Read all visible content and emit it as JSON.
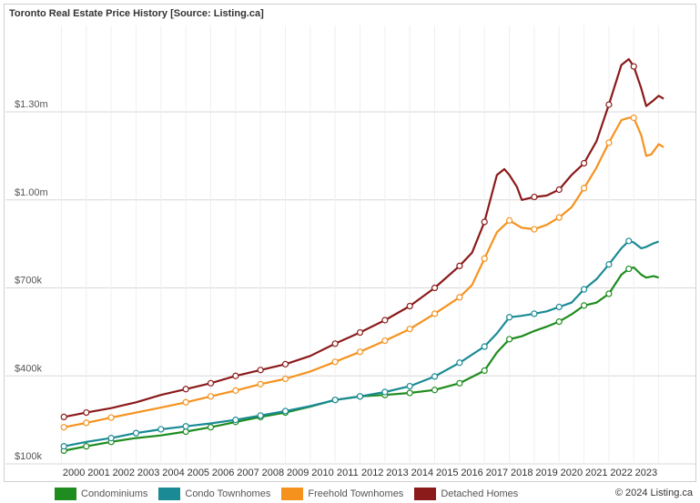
{
  "title": "Toronto Real Estate Price History [Source: Listing.ca]",
  "copyright": "© 2024 Listing.ca",
  "chart_data": {
    "type": "line",
    "title": "Toronto Real Estate Price History [Source: Listing.ca]",
    "xlabel": "",
    "ylabel": "",
    "x_ticks": [
      "2000",
      "2001",
      "2002",
      "2003",
      "2004",
      "2005",
      "2006",
      "2007",
      "2008",
      "2009",
      "2010",
      "2011",
      "2012",
      "2013",
      "2014",
      "2015",
      "2016",
      "2017",
      "2018",
      "2019",
      "2020",
      "2021",
      "2022",
      "2023"
    ],
    "y_ticks": [
      {
        "value": 100000,
        "label": "$100k"
      },
      {
        "value": 400000,
        "label": "$400k"
      },
      {
        "value": 700000,
        "label": "$700k"
      },
      {
        "value": 1000000,
        "label": "$1.00m"
      },
      {
        "value": 1300000,
        "label": "$1.30m"
      }
    ],
    "xlim": [
      1999.3,
      2024.1
    ],
    "ylim": [
      100000,
      1570000
    ],
    "grid": true,
    "legend_placement": "bottom",
    "series": [
      {
        "name": "Condominiums",
        "color": "#1e8c1e",
        "points": [
          [
            1999.6,
            145000
          ],
          [
            2000.5,
            160000
          ],
          [
            2001.5,
            175000
          ],
          [
            2002.5,
            188000
          ],
          [
            2003.5,
            197000
          ],
          [
            2004.5,
            210000
          ],
          [
            2005.5,
            225000
          ],
          [
            2006.5,
            243000
          ],
          [
            2007.5,
            260000
          ],
          [
            2008.5,
            275000
          ],
          [
            2009.5,
            295000
          ],
          [
            2010.5,
            318000
          ],
          [
            2011.5,
            330000
          ],
          [
            2012.5,
            335000
          ],
          [
            2013.5,
            342000
          ],
          [
            2014.5,
            352000
          ],
          [
            2015.5,
            375000
          ],
          [
            2016.5,
            418000
          ],
          [
            2017.0,
            480000
          ],
          [
            2017.5,
            525000
          ],
          [
            2018.0,
            535000
          ],
          [
            2018.5,
            553000
          ],
          [
            2019.0,
            568000
          ],
          [
            2019.5,
            585000
          ],
          [
            2020.0,
            610000
          ],
          [
            2020.5,
            640000
          ],
          [
            2021.0,
            650000
          ],
          [
            2021.5,
            680000
          ],
          [
            2022.0,
            745000
          ],
          [
            2022.3,
            765000
          ],
          [
            2022.5,
            770000
          ],
          [
            2022.8,
            745000
          ],
          [
            2023.0,
            735000
          ],
          [
            2023.3,
            740000
          ],
          [
            2023.5,
            735000
          ]
        ],
        "markers": [
          [
            1999.6,
            145000
          ],
          [
            2000.5,
            160000
          ],
          [
            2001.5,
            175000
          ],
          [
            2004.5,
            210000
          ],
          [
            2005.5,
            225000
          ],
          [
            2006.5,
            243000
          ],
          [
            2007.5,
            260000
          ],
          [
            2008.5,
            275000
          ],
          [
            2010.5,
            318000
          ],
          [
            2011.5,
            330000
          ],
          [
            2012.5,
            335000
          ],
          [
            2013.5,
            342000
          ],
          [
            2014.5,
            352000
          ],
          [
            2015.5,
            375000
          ],
          [
            2016.5,
            418000
          ],
          [
            2017.5,
            525000
          ],
          [
            2019.5,
            585000
          ],
          [
            2020.5,
            640000
          ],
          [
            2021.5,
            680000
          ],
          [
            2022.3,
            765000
          ]
        ]
      },
      {
        "name": "Condo Townhomes",
        "color": "#1a8a94",
        "points": [
          [
            1999.6,
            160000
          ],
          [
            2000.5,
            175000
          ],
          [
            2001.5,
            188000
          ],
          [
            2002.5,
            205000
          ],
          [
            2003.5,
            218000
          ],
          [
            2004.5,
            228000
          ],
          [
            2005.5,
            238000
          ],
          [
            2006.5,
            250000
          ],
          [
            2007.5,
            265000
          ],
          [
            2008.5,
            280000
          ],
          [
            2009.5,
            297000
          ],
          [
            2010.5,
            318000
          ],
          [
            2011.5,
            330000
          ],
          [
            2012.5,
            345000
          ],
          [
            2013.5,
            365000
          ],
          [
            2014.5,
            398000
          ],
          [
            2015.5,
            445000
          ],
          [
            2016.5,
            500000
          ],
          [
            2017.0,
            545000
          ],
          [
            2017.5,
            600000
          ],
          [
            2018.0,
            605000
          ],
          [
            2018.5,
            612000
          ],
          [
            2019.0,
            620000
          ],
          [
            2019.5,
            635000
          ],
          [
            2020.0,
            650000
          ],
          [
            2020.5,
            695000
          ],
          [
            2021.0,
            730000
          ],
          [
            2021.5,
            780000
          ],
          [
            2022.0,
            835000
          ],
          [
            2022.3,
            860000
          ],
          [
            2022.5,
            855000
          ],
          [
            2022.8,
            835000
          ],
          [
            2023.0,
            840000
          ],
          [
            2023.3,
            852000
          ],
          [
            2023.5,
            858000
          ]
        ],
        "markers": [
          [
            1999.6,
            160000
          ],
          [
            2001.5,
            188000
          ],
          [
            2002.5,
            205000
          ],
          [
            2003.5,
            218000
          ],
          [
            2004.5,
            228000
          ],
          [
            2006.5,
            250000
          ],
          [
            2007.5,
            265000
          ],
          [
            2008.5,
            280000
          ],
          [
            2010.5,
            318000
          ],
          [
            2011.5,
            330000
          ],
          [
            2012.5,
            345000
          ],
          [
            2013.5,
            365000
          ],
          [
            2014.5,
            398000
          ],
          [
            2015.5,
            445000
          ],
          [
            2016.5,
            500000
          ],
          [
            2017.5,
            600000
          ],
          [
            2018.5,
            612000
          ],
          [
            2019.5,
            635000
          ],
          [
            2020.5,
            695000
          ],
          [
            2021.5,
            780000
          ],
          [
            2022.3,
            860000
          ]
        ]
      },
      {
        "name": "Freehold Townhomes",
        "color": "#f5921e",
        "points": [
          [
            1999.6,
            225000
          ],
          [
            2000.5,
            240000
          ],
          [
            2001.5,
            258000
          ],
          [
            2002.5,
            275000
          ],
          [
            2003.5,
            292000
          ],
          [
            2004.5,
            310000
          ],
          [
            2005.5,
            330000
          ],
          [
            2006.5,
            350000
          ],
          [
            2007.5,
            372000
          ],
          [
            2008.5,
            390000
          ],
          [
            2009.5,
            415000
          ],
          [
            2010.5,
            448000
          ],
          [
            2011.5,
            482000
          ],
          [
            2012.5,
            520000
          ],
          [
            2013.5,
            560000
          ],
          [
            2014.5,
            612000
          ],
          [
            2015.5,
            668000
          ],
          [
            2016.0,
            710000
          ],
          [
            2016.5,
            800000
          ],
          [
            2017.0,
            890000
          ],
          [
            2017.5,
            930000
          ],
          [
            2018.0,
            905000
          ],
          [
            2018.5,
            900000
          ],
          [
            2019.0,
            915000
          ],
          [
            2019.5,
            940000
          ],
          [
            2020.0,
            975000
          ],
          [
            2020.5,
            1040000
          ],
          [
            2021.0,
            1110000
          ],
          [
            2021.5,
            1195000
          ],
          [
            2022.0,
            1272000
          ],
          [
            2022.3,
            1280000
          ],
          [
            2022.5,
            1280000
          ],
          [
            2022.8,
            1220000
          ],
          [
            2023.0,
            1150000
          ],
          [
            2023.2,
            1155000
          ],
          [
            2023.5,
            1190000
          ],
          [
            2023.7,
            1180000
          ]
        ],
        "markers": [
          [
            1999.6,
            225000
          ],
          [
            2000.5,
            240000
          ],
          [
            2001.5,
            258000
          ],
          [
            2004.5,
            310000
          ],
          [
            2005.5,
            330000
          ],
          [
            2006.5,
            350000
          ],
          [
            2007.5,
            372000
          ],
          [
            2008.5,
            390000
          ],
          [
            2010.5,
            448000
          ],
          [
            2011.5,
            482000
          ],
          [
            2012.5,
            520000
          ],
          [
            2013.5,
            560000
          ],
          [
            2014.5,
            612000
          ],
          [
            2015.5,
            668000
          ],
          [
            2016.5,
            800000
          ],
          [
            2017.5,
            930000
          ],
          [
            2018.5,
            900000
          ],
          [
            2019.5,
            940000
          ],
          [
            2020.5,
            1040000
          ],
          [
            2021.5,
            1195000
          ],
          [
            2022.5,
            1280000
          ]
        ]
      },
      {
        "name": "Detached Homes",
        "color": "#8b1a1a",
        "points": [
          [
            1999.6,
            260000
          ],
          [
            2000.5,
            275000
          ],
          [
            2001.5,
            290000
          ],
          [
            2002.5,
            310000
          ],
          [
            2003.5,
            335000
          ],
          [
            2004.5,
            355000
          ],
          [
            2005.5,
            375000
          ],
          [
            2006.5,
            400000
          ],
          [
            2007.5,
            420000
          ],
          [
            2008.5,
            440000
          ],
          [
            2009.5,
            468000
          ],
          [
            2010.5,
            510000
          ],
          [
            2011.5,
            548000
          ],
          [
            2012.5,
            590000
          ],
          [
            2013.5,
            638000
          ],
          [
            2014.5,
            700000
          ],
          [
            2015.5,
            775000
          ],
          [
            2016.0,
            820000
          ],
          [
            2016.5,
            925000
          ],
          [
            2017.0,
            1085000
          ],
          [
            2017.3,
            1105000
          ],
          [
            2017.5,
            1085000
          ],
          [
            2017.8,
            1045000
          ],
          [
            2018.0,
            1000000
          ],
          [
            2018.5,
            1010000
          ],
          [
            2019.0,
            1015000
          ],
          [
            2019.5,
            1035000
          ],
          [
            2020.0,
            1085000
          ],
          [
            2020.5,
            1125000
          ],
          [
            2021.0,
            1200000
          ],
          [
            2021.5,
            1325000
          ],
          [
            2022.0,
            1460000
          ],
          [
            2022.3,
            1480000
          ],
          [
            2022.5,
            1455000
          ],
          [
            2022.8,
            1380000
          ],
          [
            2023.0,
            1320000
          ],
          [
            2023.3,
            1340000
          ],
          [
            2023.5,
            1355000
          ],
          [
            2023.7,
            1345000
          ]
        ],
        "markers": [
          [
            1999.6,
            260000
          ],
          [
            2000.5,
            275000
          ],
          [
            2004.5,
            355000
          ],
          [
            2005.5,
            375000
          ],
          [
            2006.5,
            400000
          ],
          [
            2007.5,
            420000
          ],
          [
            2008.5,
            440000
          ],
          [
            2010.5,
            510000
          ],
          [
            2011.5,
            548000
          ],
          [
            2012.5,
            590000
          ],
          [
            2013.5,
            638000
          ],
          [
            2014.5,
            700000
          ],
          [
            2015.5,
            775000
          ],
          [
            2016.5,
            925000
          ],
          [
            2018.5,
            1010000
          ],
          [
            2019.5,
            1035000
          ],
          [
            2020.5,
            1125000
          ],
          [
            2021.5,
            1325000
          ],
          [
            2022.5,
            1455000
          ]
        ]
      }
    ]
  }
}
